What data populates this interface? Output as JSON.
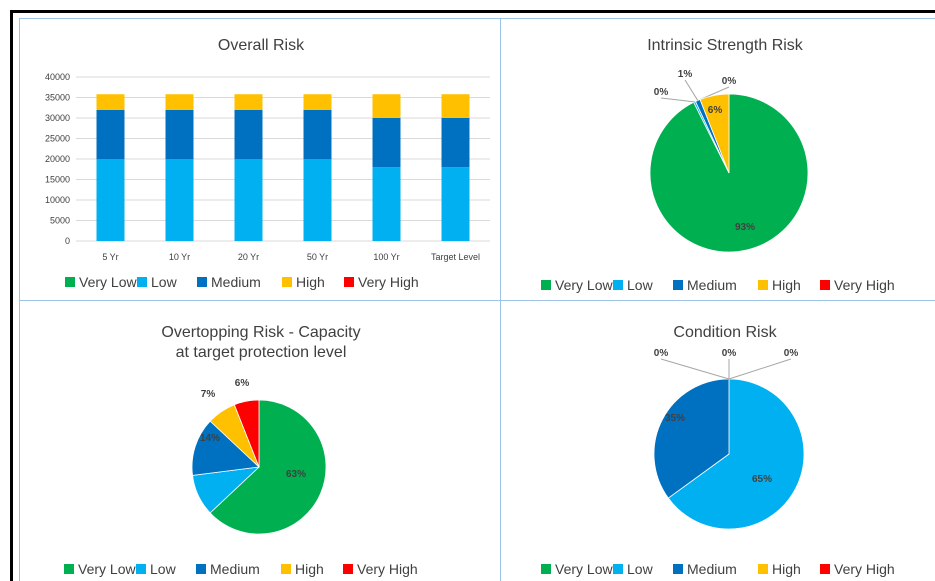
{
  "colors": {
    "very_low": "#00b050",
    "low": "#00b0f0",
    "medium": "#0070c0",
    "high": "#ffc000",
    "very_high": "#ff0000"
  },
  "legend": [
    "Very Low",
    "Low",
    "Medium",
    "High",
    "Very High"
  ],
  "chart_data": [
    {
      "id": "overall",
      "type": "bar",
      "stacked": true,
      "title": "Overall Risk",
      "categories": [
        "5 Yr",
        "10 Yr",
        "20 Yr",
        "50 Yr",
        "100 Yr",
        "Target Level"
      ],
      "ylim": [
        0,
        40000
      ],
      "yticks": [
        0,
        5000,
        10000,
        15000,
        20000,
        25000,
        30000,
        35000,
        40000
      ],
      "grid": true,
      "legend_position": "bottom",
      "series": [
        {
          "name": "Very Low",
          "values": [
            0,
            0,
            0,
            0,
            0,
            0
          ]
        },
        {
          "name": "Low",
          "values": [
            20000,
            20000,
            20000,
            20000,
            18000,
            18000
          ]
        },
        {
          "name": "Medium",
          "values": [
            12000,
            12000,
            12000,
            12000,
            12000,
            12000
          ]
        },
        {
          "name": "High",
          "values": [
            3800,
            3800,
            3800,
            3800,
            5800,
            5800
          ]
        },
        {
          "name": "Very High",
          "values": [
            0,
            0,
            0,
            0,
            0,
            0
          ]
        }
      ]
    },
    {
      "id": "intrinsic",
      "type": "pie",
      "title": "Intrinsic Strength Risk",
      "legend_position": "bottom",
      "slices": [
        {
          "name": "Very Low",
          "value": 93,
          "label": "93%"
        },
        {
          "name": "Low",
          "value": 0.4,
          "label": "0%"
        },
        {
          "name": "Medium",
          "value": 1,
          "label": "1%"
        },
        {
          "name": "High",
          "value": 6,
          "label": "6%"
        },
        {
          "name": "Very High",
          "value": 0,
          "label": "0%"
        }
      ]
    },
    {
      "id": "overtopping",
      "type": "pie",
      "title": [
        "Overtopping Risk - Capacity",
        "at target protection level"
      ],
      "legend_position": "bottom",
      "slices": [
        {
          "name": "Very Low",
          "value": 63,
          "label": "63%"
        },
        {
          "name": "Low",
          "value": 10,
          "label": "10%"
        },
        {
          "name": "Medium",
          "value": 14,
          "label": "14%"
        },
        {
          "name": "High",
          "value": 7,
          "label": "7%"
        },
        {
          "name": "Very High",
          "value": 6,
          "label": "6%"
        }
      ]
    },
    {
      "id": "condition",
      "type": "pie",
      "title": "Condition Risk",
      "legend_position": "bottom",
      "slices": [
        {
          "name": "Very Low",
          "value": 0,
          "label": "0%"
        },
        {
          "name": "Low",
          "value": 65,
          "label": "65%"
        },
        {
          "name": "Medium",
          "value": 35,
          "label": "35%"
        },
        {
          "name": "High",
          "value": 0,
          "label": "0%"
        },
        {
          "name": "Very High",
          "value": 0,
          "label": "0%"
        }
      ]
    }
  ]
}
